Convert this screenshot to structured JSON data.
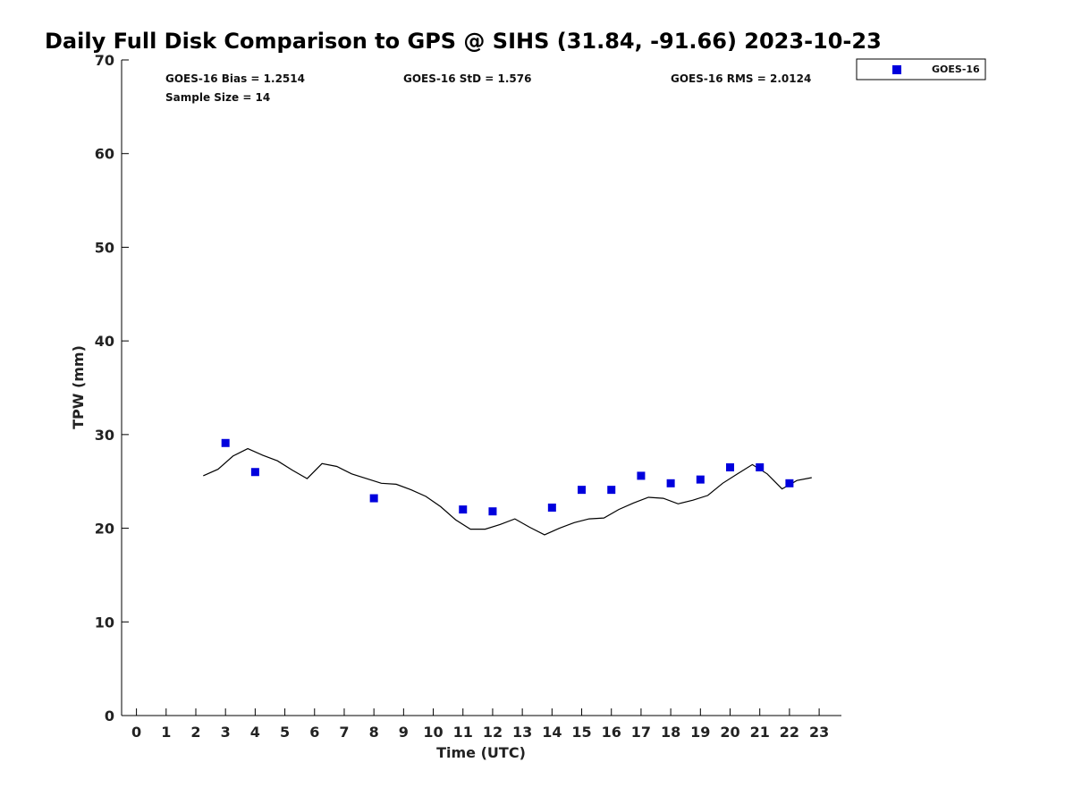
{
  "chart_data": {
    "type": "scatter",
    "title": "Daily Full Disk Comparison to GPS @ SIHS (31.84, -91.66) 2023-10-23",
    "xlabel": "Time (UTC)",
    "ylabel": "TPW (mm)",
    "xlim": [
      -0.5,
      23.75
    ],
    "ylim": [
      0,
      70
    ],
    "xticks": [
      0,
      1,
      2,
      3,
      4,
      5,
      6,
      7,
      8,
      9,
      10,
      11,
      12,
      13,
      14,
      15,
      16,
      17,
      18,
      19,
      20,
      21,
      22,
      23
    ],
    "yticks": [
      0,
      10,
      20,
      30,
      40,
      50,
      60,
      70
    ],
    "grid": false,
    "legend_position": "top-right",
    "stats": {
      "bias": "GOES-16 Bias = 1.2514",
      "std": "GOES-16 StD = 1.576",
      "rms": "GOES-16 RMS = 2.0124",
      "sample_size": "Sample Size = 14"
    },
    "series": [
      {
        "name": "GOES-16",
        "type": "scatter",
        "color": "#0000dd",
        "marker": "square",
        "x": [
          3,
          4,
          8,
          11,
          12,
          14,
          15,
          16,
          17,
          18,
          19,
          20,
          21,
          22
        ],
        "y": [
          29.1,
          26.0,
          23.2,
          22.0,
          21.8,
          22.2,
          24.1,
          24.1,
          25.6,
          24.8,
          25.2,
          26.5,
          26.5,
          24.8
        ]
      },
      {
        "type": "line",
        "color": "#000000",
        "x": [
          2.25,
          2.75,
          3.25,
          3.75,
          4.25,
          4.75,
          5.25,
          5.75,
          6.25,
          6.75,
          7.25,
          7.75,
          8.25,
          8.75,
          9.25,
          9.75,
          10.25,
          10.75,
          11.25,
          11.75,
          12.25,
          12.75,
          13.25,
          13.75,
          14.25,
          14.75,
          15.25,
          15.75,
          16.25,
          16.75,
          17.25,
          17.75,
          18.25,
          18.75,
          19.25,
          19.75,
          20.25,
          20.75,
          21.25,
          21.75,
          22.25,
          22.75
        ],
        "y": [
          25.6,
          26.3,
          27.7,
          28.5,
          27.8,
          27.2,
          26.2,
          25.3,
          26.9,
          26.6,
          25.8,
          25.3,
          24.8,
          24.7,
          24.1,
          23.4,
          22.3,
          20.9,
          19.9,
          19.9,
          20.4,
          21.0,
          20.1,
          19.3,
          20.0,
          20.6,
          21.0,
          21.1,
          22.0,
          22.7,
          23.3,
          23.2,
          22.6,
          23.0,
          23.5,
          24.8,
          25.8,
          26.8,
          25.8,
          24.2,
          25.1,
          25.4
        ]
      }
    ]
  }
}
